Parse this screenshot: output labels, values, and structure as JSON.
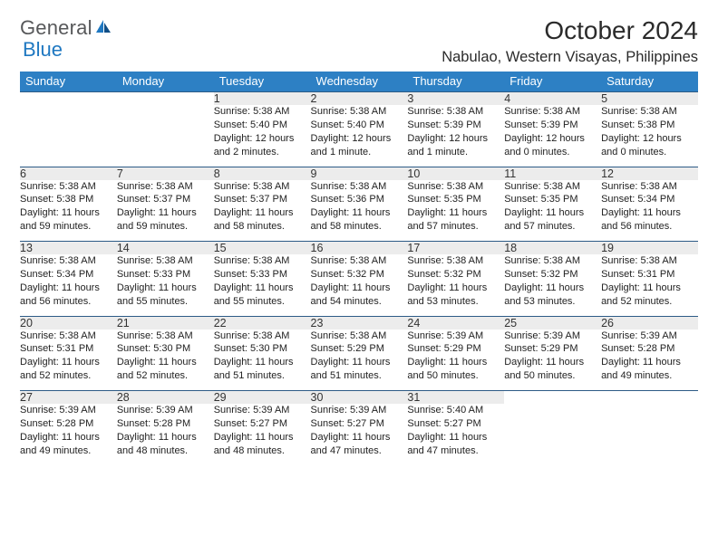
{
  "logo": {
    "word1": "General",
    "word2": "Blue"
  },
  "header": {
    "month_title": "October 2024",
    "location": "Nabulao, Western Visayas, Philippines"
  },
  "calendar": {
    "type": "table",
    "header_bg": "#2d80c4",
    "header_fg": "#ffffff",
    "daynum_bg": "#ececec",
    "rule_color": "#2d5b86",
    "columns": [
      "Sunday",
      "Monday",
      "Tuesday",
      "Wednesday",
      "Thursday",
      "Friday",
      "Saturday"
    ],
    "weeks": [
      [
        null,
        null,
        {
          "n": "1",
          "sr": "5:38 AM",
          "ss": "5:40 PM",
          "dl": "12 hours and 2 minutes."
        },
        {
          "n": "2",
          "sr": "5:38 AM",
          "ss": "5:40 PM",
          "dl": "12 hours and 1 minute."
        },
        {
          "n": "3",
          "sr": "5:38 AM",
          "ss": "5:39 PM",
          "dl": "12 hours and 1 minute."
        },
        {
          "n": "4",
          "sr": "5:38 AM",
          "ss": "5:39 PM",
          "dl": "12 hours and 0 minutes."
        },
        {
          "n": "5",
          "sr": "5:38 AM",
          "ss": "5:38 PM",
          "dl": "12 hours and 0 minutes."
        }
      ],
      [
        {
          "n": "6",
          "sr": "5:38 AM",
          "ss": "5:38 PM",
          "dl": "11 hours and 59 minutes."
        },
        {
          "n": "7",
          "sr": "5:38 AM",
          "ss": "5:37 PM",
          "dl": "11 hours and 59 minutes."
        },
        {
          "n": "8",
          "sr": "5:38 AM",
          "ss": "5:37 PM",
          "dl": "11 hours and 58 minutes."
        },
        {
          "n": "9",
          "sr": "5:38 AM",
          "ss": "5:36 PM",
          "dl": "11 hours and 58 minutes."
        },
        {
          "n": "10",
          "sr": "5:38 AM",
          "ss": "5:35 PM",
          "dl": "11 hours and 57 minutes."
        },
        {
          "n": "11",
          "sr": "5:38 AM",
          "ss": "5:35 PM",
          "dl": "11 hours and 57 minutes."
        },
        {
          "n": "12",
          "sr": "5:38 AM",
          "ss": "5:34 PM",
          "dl": "11 hours and 56 minutes."
        }
      ],
      [
        {
          "n": "13",
          "sr": "5:38 AM",
          "ss": "5:34 PM",
          "dl": "11 hours and 56 minutes."
        },
        {
          "n": "14",
          "sr": "5:38 AM",
          "ss": "5:33 PM",
          "dl": "11 hours and 55 minutes."
        },
        {
          "n": "15",
          "sr": "5:38 AM",
          "ss": "5:33 PM",
          "dl": "11 hours and 55 minutes."
        },
        {
          "n": "16",
          "sr": "5:38 AM",
          "ss": "5:32 PM",
          "dl": "11 hours and 54 minutes."
        },
        {
          "n": "17",
          "sr": "5:38 AM",
          "ss": "5:32 PM",
          "dl": "11 hours and 53 minutes."
        },
        {
          "n": "18",
          "sr": "5:38 AM",
          "ss": "5:32 PM",
          "dl": "11 hours and 53 minutes."
        },
        {
          "n": "19",
          "sr": "5:38 AM",
          "ss": "5:31 PM",
          "dl": "11 hours and 52 minutes."
        }
      ],
      [
        {
          "n": "20",
          "sr": "5:38 AM",
          "ss": "5:31 PM",
          "dl": "11 hours and 52 minutes."
        },
        {
          "n": "21",
          "sr": "5:38 AM",
          "ss": "5:30 PM",
          "dl": "11 hours and 52 minutes."
        },
        {
          "n": "22",
          "sr": "5:38 AM",
          "ss": "5:30 PM",
          "dl": "11 hours and 51 minutes."
        },
        {
          "n": "23",
          "sr": "5:38 AM",
          "ss": "5:29 PM",
          "dl": "11 hours and 51 minutes."
        },
        {
          "n": "24",
          "sr": "5:39 AM",
          "ss": "5:29 PM",
          "dl": "11 hours and 50 minutes."
        },
        {
          "n": "25",
          "sr": "5:39 AM",
          "ss": "5:29 PM",
          "dl": "11 hours and 50 minutes."
        },
        {
          "n": "26",
          "sr": "5:39 AM",
          "ss": "5:28 PM",
          "dl": "11 hours and 49 minutes."
        }
      ],
      [
        {
          "n": "27",
          "sr": "5:39 AM",
          "ss": "5:28 PM",
          "dl": "11 hours and 49 minutes."
        },
        {
          "n": "28",
          "sr": "5:39 AM",
          "ss": "5:28 PM",
          "dl": "11 hours and 48 minutes."
        },
        {
          "n": "29",
          "sr": "5:39 AM",
          "ss": "5:27 PM",
          "dl": "11 hours and 48 minutes."
        },
        {
          "n": "30",
          "sr": "5:39 AM",
          "ss": "5:27 PM",
          "dl": "11 hours and 47 minutes."
        },
        {
          "n": "31",
          "sr": "5:40 AM",
          "ss": "5:27 PM",
          "dl": "11 hours and 47 minutes."
        },
        null,
        null
      ]
    ],
    "labels": {
      "sunrise": "Sunrise:",
      "sunset": "Sunset:",
      "daylight": "Daylight:"
    }
  }
}
